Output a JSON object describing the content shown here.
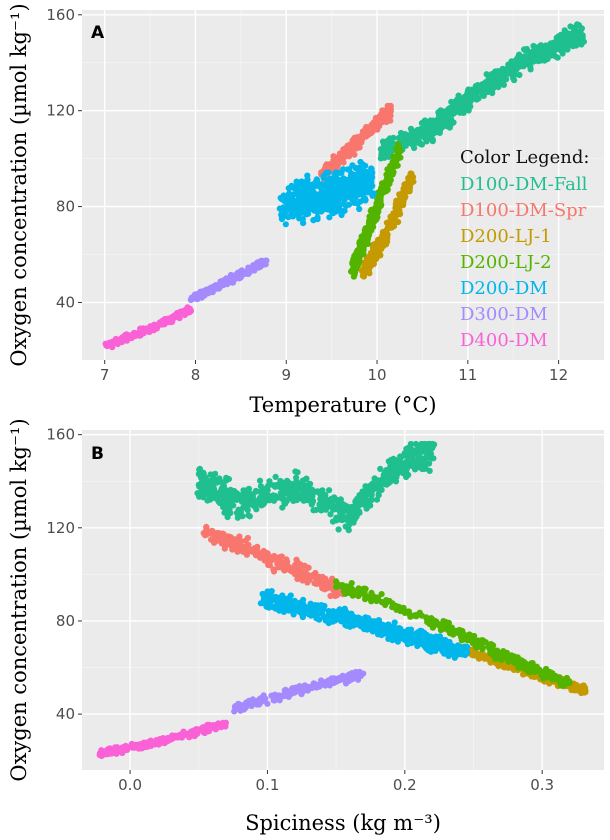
{
  "legend": {
    "title": "Color Legend:",
    "entries": [
      {
        "label": "D100-DM-Fall",
        "color": "#1fbf8f"
      },
      {
        "label": "D100-DM-Spr",
        "color": "#f8766d"
      },
      {
        "label": "D200-LJ-1",
        "color": "#c49a00"
      },
      {
        "label": "D200-LJ-2",
        "color": "#53b400"
      },
      {
        "label": "D200-DM",
        "color": "#00b6eb"
      },
      {
        "label": "D300-DM",
        "color": "#a58aff"
      },
      {
        "label": "D400-DM",
        "color": "#fb61d7"
      }
    ]
  },
  "chart_data": [
    {
      "panel": "A",
      "type": "scatter",
      "xlabel": "Temperature (°C)",
      "ylabel": "Oxygen concentration (µmol kg⁻¹)",
      "xlim": [
        6.75,
        12.5
      ],
      "ylim": [
        16,
        162
      ],
      "xticks": [
        7,
        8,
        9,
        10,
        11,
        12
      ],
      "yticks": [
        40,
        80,
        120,
        160
      ],
      "grid": true,
      "legend_position": "right",
      "series": [
        {
          "name": "D100-DM-Fall",
          "color": "#1fbf8f",
          "x_range": [
            10.0,
            12.3
          ],
          "y_range": [
            100,
            156
          ]
        },
        {
          "name": "D100-DM-Spr",
          "color": "#f8766d",
          "x_range": [
            9.35,
            10.15
          ],
          "y_range": [
            90,
            122
          ]
        },
        {
          "name": "D200-LJ-1",
          "color": "#c49a00",
          "x_range": [
            9.8,
            10.4
          ],
          "y_range": [
            50,
            95
          ]
        },
        {
          "name": "D200-LJ-2",
          "color": "#53b400",
          "x_range": [
            9.7,
            10.3
          ],
          "y_range": [
            49,
            108
          ]
        },
        {
          "name": "D200-DM",
          "color": "#00b6eb",
          "x_range": [
            8.9,
            10.0
          ],
          "y_range": [
            68,
            103
          ]
        },
        {
          "name": "D300-DM",
          "color": "#a58aff",
          "x_range": [
            7.95,
            8.8
          ],
          "y_range": [
            40,
            59
          ]
        },
        {
          "name": "D400-DM",
          "color": "#fb61d7",
          "x_range": [
            7.0,
            7.95
          ],
          "y_range": [
            21,
            38
          ]
        }
      ]
    },
    {
      "panel": "B",
      "type": "scatter",
      "xlabel": "Spiciness (kg m⁻³)",
      "ylabel": "Oxygen concentration (µmol kg⁻¹)",
      "xlim": [
        -0.035,
        0.345
      ],
      "ylim": [
        16,
        162
      ],
      "xticks": [
        0.0,
        0.1,
        0.2,
        0.3
      ],
      "xticklabels": [
        "0.0",
        "0.1",
        "0.2",
        "0.3"
      ],
      "yticks": [
        40,
        80,
        120,
        160
      ],
      "grid": true,
      "series": [
        {
          "name": "D100-DM-Fall",
          "color": "#1fbf8f",
          "x_range": [
            0.04,
            0.225
          ],
          "y_range": [
            106,
            156
          ]
        },
        {
          "name": "D100-DM-Spr",
          "color": "#f8766d",
          "x_range": [
            0.05,
            0.155
          ],
          "y_range": [
            88,
            123
          ]
        },
        {
          "name": "D200-LJ-1",
          "color": "#c49a00",
          "x_range": [
            0.24,
            0.333
          ],
          "y_range": [
            49,
            70
          ]
        },
        {
          "name": "D200-LJ-2",
          "color": "#53b400",
          "x_range": [
            0.15,
            0.32
          ],
          "y_range": [
            50,
            97
          ]
        },
        {
          "name": "D200-DM",
          "color": "#00b6eb",
          "x_range": [
            0.09,
            0.25
          ],
          "y_range": [
            63,
            98
          ]
        },
        {
          "name": "D300-DM",
          "color": "#a58aff",
          "x_range": [
            0.07,
            0.17
          ],
          "y_range": [
            40,
            59
          ]
        },
        {
          "name": "D400-DM",
          "color": "#fb61d7",
          "x_range": [
            -0.025,
            0.075
          ],
          "y_range": [
            21,
            38
          ]
        }
      ]
    }
  ]
}
